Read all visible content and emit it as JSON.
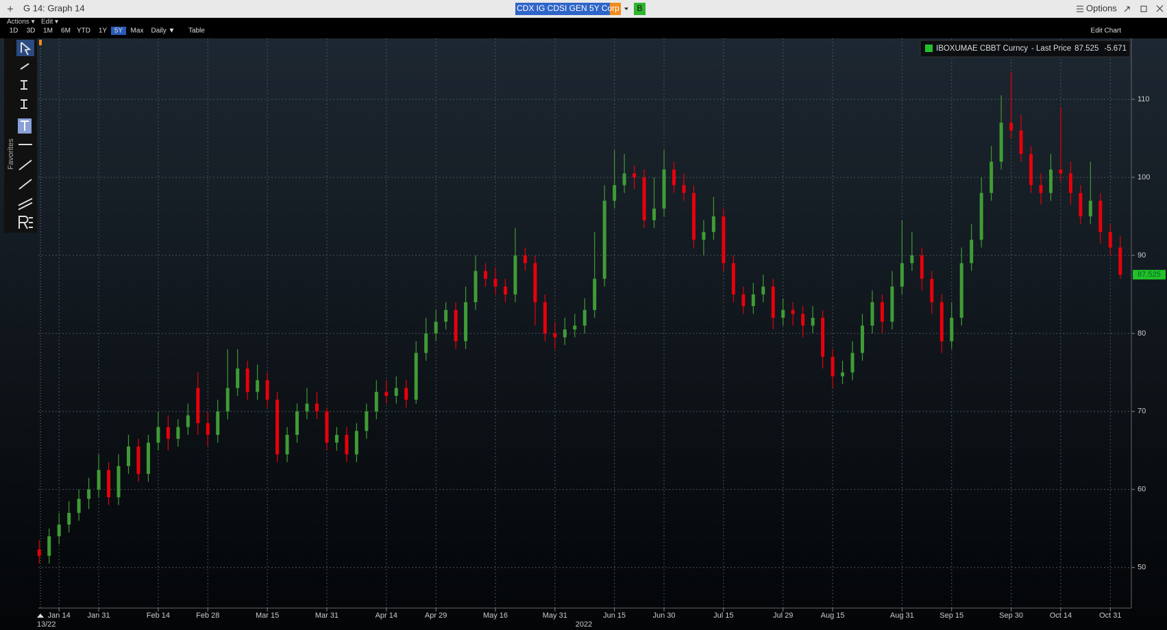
{
  "ui": {
    "window_title": "G 14: Graph 14",
    "ticker": "CDX IG CDSI GEN 5Y Corp",
    "ticker_button": "B",
    "options": "Options",
    "menus": [
      "Actions ▾",
      "Edit ▾"
    ],
    "ranges": [
      {
        "label": "1D"
      },
      {
        "label": "3D"
      },
      {
        "label": "1M"
      },
      {
        "label": "6M"
      },
      {
        "label": "YTD"
      },
      {
        "label": "1Y"
      },
      {
        "label": "5Y",
        "active": true
      },
      {
        "label": "Max"
      },
      {
        "label": "Daily ▼"
      },
      {
        "label": "Table"
      }
    ],
    "edit_chart": "Edit Chart",
    "favorites": "Favorites",
    "start_date": "13/22"
  },
  "chart_data": {
    "type": "candlestick",
    "xlabel": "2022",
    "categories": [
      null,
      null,
      "Jan 14",
      null,
      null,
      null,
      "Jan 31",
      null,
      null,
      null,
      null,
      null,
      "Feb 14",
      null,
      null,
      null,
      null,
      "Feb 28",
      null,
      null,
      null,
      null,
      null,
      "Mar 15",
      null,
      null,
      null,
      null,
      null,
      "Mar 31",
      null,
      null,
      null,
      null,
      null,
      "Apr 14",
      null,
      null,
      null,
      null,
      "Apr 29",
      null,
      null,
      null,
      null,
      null,
      "May 16",
      null,
      null,
      null,
      null,
      null,
      "May 31",
      null,
      null,
      null,
      null,
      null,
      "Jun 15",
      null,
      null,
      null,
      null,
      "Jun 30",
      null,
      null,
      null,
      null,
      null,
      "Jul 15",
      null,
      null,
      null,
      null,
      null,
      "Jul 29",
      null,
      null,
      null,
      null,
      "Aug 15",
      null,
      null,
      null,
      null,
      null,
      null,
      "Aug 31",
      null,
      null,
      null,
      null,
      "Sep 15",
      null,
      null,
      null,
      null,
      null,
      "Sep 30",
      null,
      null,
      null,
      null,
      "Oct 14",
      null,
      null,
      null,
      null,
      "Oct 31",
      null
    ],
    "series": [
      {
        "name": "IBOXUMAE CBBT Curncy",
        "up_color": "#3f9c35",
        "down_color": "#e8000b",
        "legend_color": "#22c02a",
        "open": [
          52.3,
          51.5,
          54,
          55.5,
          57,
          58.8,
          60,
          62.5,
          59,
          63,
          65.5,
          62,
          66,
          68,
          66.5,
          68,
          73,
          68.5,
          67,
          70,
          73,
          75.5,
          72.5,
          74,
          71.5,
          64.5,
          67,
          70,
          71,
          70,
          66,
          67,
          64.5,
          67.5,
          70,
          72.5,
          72,
          73,
          71.5,
          77.5,
          80,
          81.5,
          83,
          79,
          84,
          88,
          87,
          86,
          85,
          90,
          89,
          84,
          80,
          79.5,
          80.5,
          81,
          83,
          87,
          97,
          99,
          100.5,
          100,
          94.5,
          96,
          101,
          99,
          98,
          92,
          93,
          95,
          89,
          85,
          83.5,
          85,
          86,
          82,
          83,
          82.5,
          81,
          82,
          77,
          74.5,
          75,
          77.5,
          81,
          84,
          81.5,
          86,
          89,
          90,
          87,
          84,
          79,
          82,
          89,
          92,
          98,
          102,
          107,
          106,
          103,
          99,
          98,
          101,
          100.5,
          98,
          95,
          97,
          93,
          91
        ],
        "high": [
          53.5,
          55,
          57,
          58.5,
          60,
          61.5,
          64.5,
          63.5,
          64.5,
          67,
          66.5,
          67,
          70,
          69.5,
          69,
          71,
          75,
          70,
          71.5,
          78,
          78,
          76.5,
          76,
          75,
          72.5,
          68,
          71,
          73,
          72.5,
          70.5,
          68,
          68,
          68.5,
          71,
          74,
          74,
          74.5,
          74,
          79,
          82,
          83,
          84,
          84,
          86,
          90,
          89,
          88.5,
          87,
          93.5,
          91,
          90,
          85,
          81.5,
          82,
          82.5,
          84.5,
          93,
          99,
          103.5,
          103,
          101.5,
          101,
          100,
          103.5,
          102,
          100.5,
          99,
          94.5,
          97.5,
          96,
          90,
          86,
          86.5,
          87.5,
          87,
          84.5,
          84,
          83.5,
          83.5,
          83,
          78,
          76.5,
          79,
          82.5,
          85.5,
          85,
          88,
          94.5,
          93,
          91,
          88,
          85,
          84,
          91,
          94,
          100,
          104,
          110.5,
          113.5,
          108,
          104,
          100.5,
          103,
          109,
          102,
          99,
          102,
          98,
          94,
          92.5
        ],
        "low": [
          50.5,
          50.5,
          53,
          54.5,
          56,
          57.5,
          59,
          58,
          58,
          62,
          61,
          61,
          65,
          65,
          65.5,
          67,
          67,
          65.5,
          66,
          69,
          72,
          71.5,
          71.5,
          70.5,
          63.5,
          63.5,
          66,
          69,
          69,
          65,
          65,
          63.5,
          63.5,
          66.5,
          69,
          71,
          71,
          70.5,
          71,
          76.5,
          79,
          80.5,
          78,
          78,
          83,
          86,
          85,
          84,
          84,
          88,
          81,
          79,
          78,
          78.5,
          79.5,
          80,
          82,
          86,
          96,
          98,
          98.5,
          93.5,
          93.5,
          95,
          98,
          97,
          91,
          90,
          92,
          88,
          84,
          82.5,
          82.5,
          84,
          80.5,
          81,
          81,
          79.5,
          80,
          75.5,
          73,
          73.5,
          74,
          76.5,
          80,
          80,
          80.5,
          85,
          88,
          85.5,
          82.5,
          77.5,
          78,
          81,
          88,
          91,
          97,
          101,
          105,
          102,
          98,
          96.5,
          97,
          99.5,
          96.5,
          94,
          94,
          91.5,
          90,
          87
        ],
        "close": [
          51.5,
          54,
          55.5,
          57,
          58.8,
          60,
          62.5,
          59,
          63,
          65.5,
          62,
          66,
          68,
          66.5,
          68,
          69.5,
          68.5,
          67,
          70,
          73,
          75.5,
          72.5,
          74,
          71.5,
          64.5,
          67,
          70,
          71,
          70,
          66,
          67,
          64.5,
          67.5,
          70,
          72.5,
          72,
          73,
          71.5,
          77.5,
          80,
          81.5,
          83,
          79,
          84,
          88,
          87,
          86,
          85,
          90,
          89,
          84,
          80,
          79.5,
          80.5,
          81,
          83,
          87,
          97,
          99,
          100.5,
          100,
          94.5,
          96,
          101,
          99,
          98,
          92,
          93,
          95,
          89,
          85,
          83.5,
          85,
          86,
          82,
          83,
          82.5,
          81,
          82,
          77,
          74.5,
          75,
          77.5,
          81,
          84,
          81.5,
          86,
          89,
          90,
          87,
          84,
          79,
          82,
          89,
          92,
          98,
          102,
          107,
          106,
          103,
          99,
          98,
          101,
          100.5,
          98,
          95,
          97,
          93,
          91,
          87.525
        ],
        "legend_field": "- Last Price",
        "change": -5.671
      }
    ],
    "ylim": [
      44.8,
      117.9
    ],
    "yticks": [
      50,
      60,
      70,
      80,
      90,
      100,
      110
    ],
    "grid": true
  }
}
